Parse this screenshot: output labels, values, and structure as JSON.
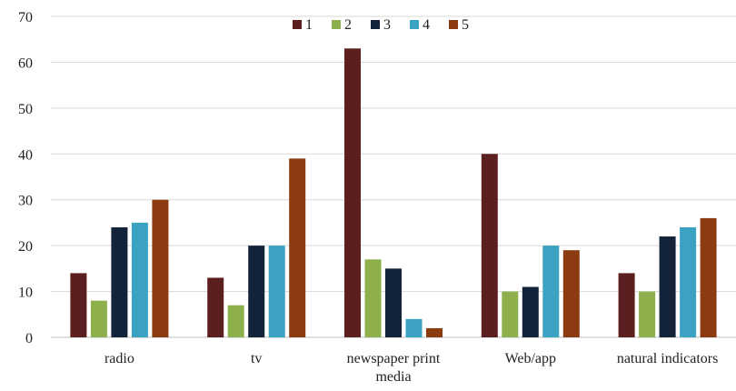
{
  "chart_data": {
    "type": "bar",
    "categories": [
      [
        "radio"
      ],
      [
        "tv"
      ],
      [
        "newspaper print",
        "media"
      ],
      [
        "Web/app"
      ],
      [
        "natural indicators"
      ]
    ],
    "series": [
      {
        "name": "1",
        "color": "#5c1f20",
        "values": [
          14,
          13,
          63,
          40,
          14
        ]
      },
      {
        "name": "2",
        "color": "#8db04d",
        "values": [
          8,
          7,
          17,
          10,
          10
        ]
      },
      {
        "name": "3",
        "color": "#13243a",
        "values": [
          24,
          20,
          15,
          11,
          22
        ]
      },
      {
        "name": "4",
        "color": "#3ba3c1",
        "values": [
          25,
          20,
          4,
          20,
          24
        ]
      },
      {
        "name": "5",
        "color": "#8c3a0f",
        "values": [
          30,
          39,
          2,
          19,
          26
        ]
      }
    ],
    "ylim": [
      0,
      70
    ],
    "yticks": [
      0,
      10,
      20,
      30,
      40,
      50,
      60,
      70
    ],
    "grid": true,
    "legend_position": "top-center",
    "xlabel": "",
    "ylabel": ""
  }
}
